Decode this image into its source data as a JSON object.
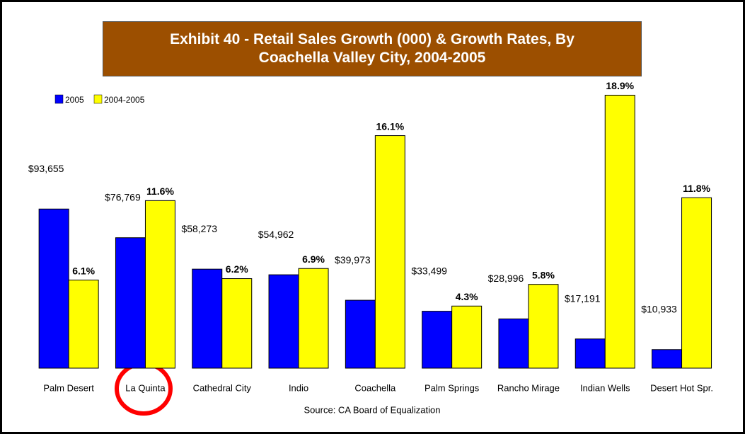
{
  "chart_data": {
    "type": "bar",
    "title": "Exhibit 40 - Retail Sales Growth (000) & Growth Rates, By Coachella Valley City, 2004-2005",
    "source": "Source:  CA Board of Equalization",
    "categories": [
      "Palm Desert",
      "La Quinta",
      "Cathedral City",
      "Indio",
      "Coachella",
      "Palm Springs",
      "Rancho Mirage",
      "Indian Wells",
      "Desert Hot Spr."
    ],
    "series": [
      {
        "name": "2005",
        "color": "#0000ff",
        "values": [
          93655,
          76769,
          58273,
          54962,
          39973,
          33499,
          28996,
          17191,
          10933
        ],
        "value_labels": [
          "$93,655",
          "$76,769",
          "$58,273",
          "$54,962",
          "$39,973",
          "$33,499",
          "$28,996",
          "$17,191",
          "$10,933"
        ]
      },
      {
        "name": "2004-2005",
        "color": "#ffff00",
        "axis": "y2",
        "values": [
          6.1,
          11.6,
          6.2,
          6.9,
          16.1,
          4.3,
          5.8,
          18.9,
          11.8
        ],
        "value_labels": [
          "6.1%",
          "11.6%",
          "6.2%",
          "6.9%",
          "16.1%",
          "4.3%",
          "5.8%",
          "18.9%",
          "11.8%"
        ]
      }
    ],
    "ylim": [
      0,
      170000
    ],
    "y2lim": [
      0,
      20
    ],
    "grid": false,
    "legend": "top-left"
  }
}
